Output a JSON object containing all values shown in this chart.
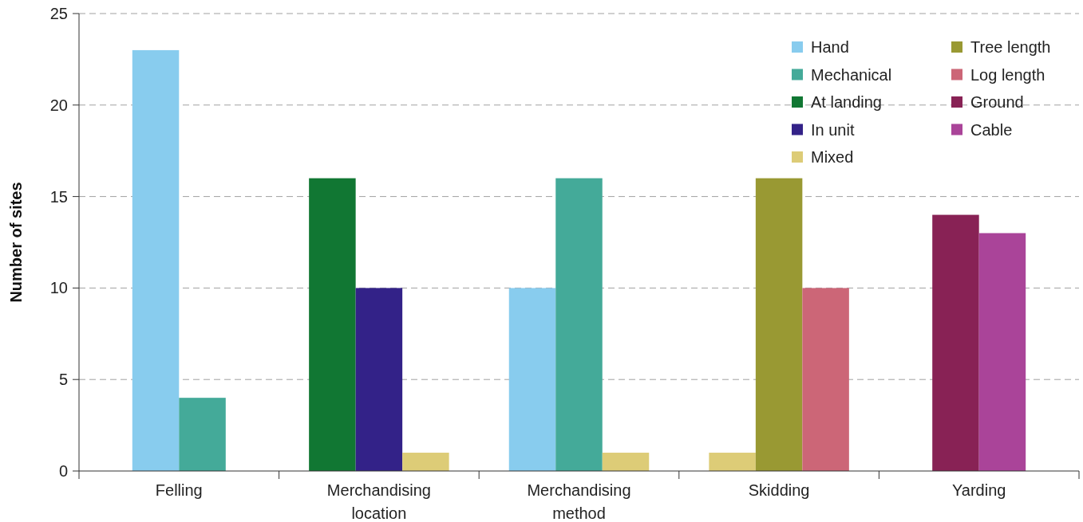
{
  "chart_data": {
    "type": "bar",
    "ylabel": "Number of sites",
    "categories": [
      "Felling",
      "Merchandising location",
      "Merchandising method",
      "Skidding",
      "Yarding"
    ],
    "series": [
      {
        "name": "Hand",
        "color": "#88ccee",
        "values": [
          23,
          null,
          10,
          null,
          null
        ]
      },
      {
        "name": "Mechanical",
        "color": "#44aa99",
        "values": [
          4,
          null,
          16,
          null,
          null
        ]
      },
      {
        "name": "At landing",
        "color": "#117733",
        "values": [
          null,
          16,
          null,
          null,
          null
        ]
      },
      {
        "name": "In unit",
        "color": "#332288",
        "values": [
          null,
          10,
          null,
          null,
          null
        ]
      },
      {
        "name": "Mixed",
        "color": "#ddcc77",
        "values": [
          null,
          1,
          1,
          1,
          null
        ]
      },
      {
        "name": "Tree length",
        "color": "#999933",
        "values": [
          null,
          null,
          null,
          16,
          null
        ]
      },
      {
        "name": "Log length",
        "color": "#cc6677",
        "values": [
          null,
          null,
          null,
          10,
          null
        ]
      },
      {
        "name": "Ground",
        "color": "#882255",
        "values": [
          null,
          null,
          null,
          null,
          14
        ]
      },
      {
        "name": "Cable",
        "color": "#aa4499",
        "values": [
          null,
          null,
          null,
          null,
          13
        ]
      }
    ],
    "ylim": [
      0,
      25
    ],
    "yticks": [
      0,
      5,
      10,
      15,
      20,
      25
    ],
    "grid": "y",
    "legend": "top right"
  }
}
